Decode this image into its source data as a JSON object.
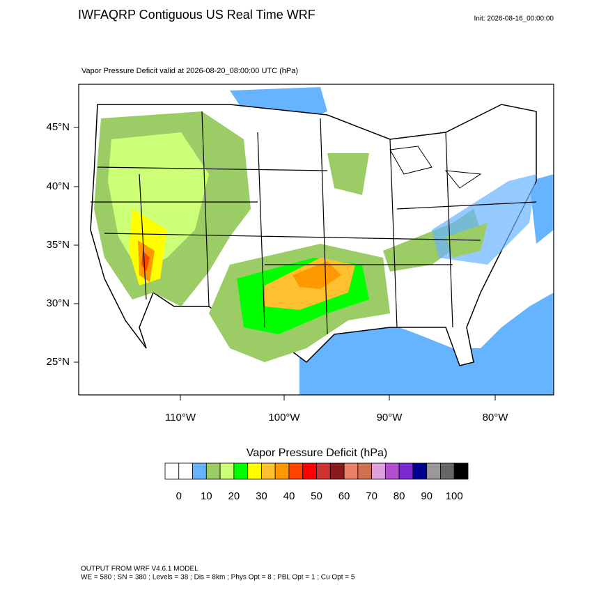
{
  "header": {
    "title": "IWFAQRP Contiguous US Real Time WRF",
    "init": "Init: 2026-08-16_00:00:00"
  },
  "map": {
    "subtitle": "Vapor Pressure Deficit valid at 2026-08-20_08:00:00 UTC   (hPa)",
    "lat_labels": [
      "45°N",
      "40°N",
      "35°N",
      "30°N",
      "25°N"
    ],
    "lon_labels": [
      "110°W",
      "100°W",
      "90°W",
      "80°W"
    ]
  },
  "colorbar": {
    "title": "Vapor Pressure Deficit  (hPa)",
    "colors": [
      "#ffffff",
      "#ffffff",
      "#66b3ff",
      "#9bcc66",
      "#ccff77",
      "#00ff00",
      "#ffff00",
      "#ffc030",
      "#ff9900",
      "#ff4400",
      "#ff0000",
      "#cc3333",
      "#8b1a1a",
      "#e8806a",
      "#d07050",
      "#e0a0e0",
      "#b050d0",
      "#7a2ad0",
      "#000090",
      "#999999",
      "#666666",
      "#000000"
    ],
    "labels": [
      0,
      10,
      20,
      30,
      40,
      50,
      60,
      70,
      80,
      90,
      100
    ]
  },
  "footer": {
    "line1": "OUTPUT FROM WRF V4.6.1 MODEL",
    "line2": "WE = 580 ; SN = 380 ; Levels = 38 ; Dis = 8km ; Phys Opt = 8 ; PBL Opt = 1 ; Cu Opt = 5"
  }
}
